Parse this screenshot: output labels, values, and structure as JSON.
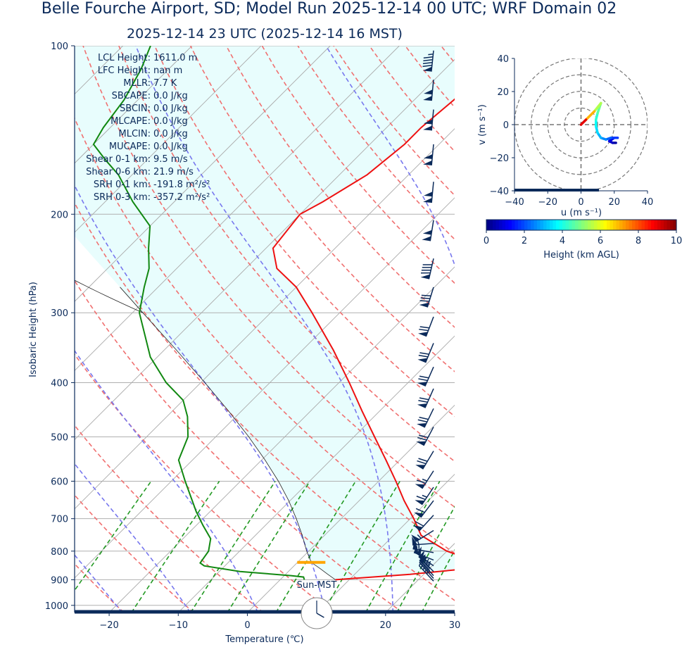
{
  "title": "Belle Fourche Airport, SD; Model Run 2025-12-14 00 UTC; WRF Domain 02",
  "subtitle": "2025-12-14 23 UTC  (2025-12-14 16 MST)",
  "colors": {
    "temperature": "#ee1111",
    "dewpoint": "#118811",
    "parcel": "#222222",
    "cape_fill": "#e8fdfd",
    "dry_adiabat": "#f07070",
    "moist_adiabat": "#7777ee",
    "mixing_ratio": "#229922",
    "isotherm": "#aaaaaa",
    "barb": "#0b2a5a",
    "lcl_marker": "#ffa500",
    "text": "#0b2a5a"
  },
  "chart_data": [
    {
      "type": "skew-t",
      "xlabel": "Temperature (℃)",
      "ylabel": "Isobaric Height (hPa)",
      "xlim": [
        -25,
        30
      ],
      "ylim": [
        1030,
        100
      ],
      "y_scale": "log",
      "x_ticks": [
        -20,
        -10,
        0,
        10,
        20,
        30
      ],
      "x_tick_labels": [
        "−20",
        "−10",
        "0",
        "10",
        "20",
        "30"
      ],
      "y_ticks": [
        1000,
        900,
        800,
        700,
        600,
        500,
        400,
        300,
        200,
        100
      ],
      "y_tick_labels": [
        "1000",
        "900",
        "800",
        "700",
        "600",
        "500",
        "400",
        "300",
        "200",
        "100"
      ],
      "stats": [
        {
          "label": "LCL Height:",
          "value": "1611.0 m"
        },
        {
          "label": "LFC Height:",
          "value": "nan m"
        },
        {
          "label": "MLLR:",
          "value": "7.7 K"
        },
        {
          "label": "SBCAPE:",
          "value": "0.0 J/kg"
        },
        {
          "label": "SBCIN:",
          "value": "0.0 J/kg"
        },
        {
          "label": "MLCAPE:",
          "value": "0.0 J/kg"
        },
        {
          "label": "MLCIN:",
          "value": "0.0 J/kg"
        },
        {
          "label": "MUCAPE:",
          "value": "0.0 J/kg"
        },
        {
          "label": "Shear 0-1 km:",
          "value": "9.5 m/s"
        },
        {
          "label": "Shear 0-6 km:",
          "value": "21.9 m/s"
        },
        {
          "label": "SRH 0-1 km:",
          "value": "-191.8 m²/s²"
        },
        {
          "label": "SRH 0-3 km:",
          "value": "-357.2 m²/s²"
        }
      ],
      "series": [
        {
          "key": "temperature",
          "points": [
            [
              900,
              8
            ],
            [
              880,
              18
            ],
            [
              860,
              25.5
            ],
            [
              840,
              26.5
            ],
            [
              800,
              20
            ],
            [
              750,
              14
            ],
            [
              700,
              10.5
            ],
            [
              650,
              6.5
            ],
            [
              600,
              2.5
            ],
            [
              550,
              -2
            ],
            [
              500,
              -7
            ],
            [
              450,
              -12.5
            ],
            [
              400,
              -18.5
            ],
            [
              350,
              -25.5
            ],
            [
              300,
              -34
            ],
            [
              270,
              -40
            ],
            [
              250,
              -45.5
            ],
            [
              230,
              -49
            ],
            [
              200,
              -50
            ],
            [
              190,
              -48.5
            ],
            [
              170,
              -46
            ],
            [
              150,
              -45
            ],
            [
              140,
              -45
            ],
            [
              120,
              -44
            ],
            [
              110,
              -44
            ],
            [
              100,
              -45
            ]
          ]
        },
        {
          "key": "dewpoint",
          "points": [
            [
              900,
              3.5
            ],
            [
              890,
              3
            ],
            [
              885,
              1
            ],
            [
              870,
              -7
            ],
            [
              850,
              -13
            ],
            [
              840,
              -14
            ],
            [
              800,
              -14.5
            ],
            [
              760,
              -16
            ],
            [
              720,
              -19
            ],
            [
              680,
              -22
            ],
            [
              600,
              -28
            ],
            [
              550,
              -32
            ],
            [
              500,
              -34
            ],
            [
              460,
              -37
            ],
            [
              430,
              -40
            ],
            [
              400,
              -45
            ],
            [
              360,
              -51
            ],
            [
              300,
              -59
            ],
            [
              270,
              -62
            ],
            [
              250,
              -64
            ],
            [
              230,
              -67
            ],
            [
              210,
              -70
            ],
            [
              190,
              -76
            ],
            [
              170,
              -82
            ],
            [
              160,
              -86
            ],
            [
              150,
              -90
            ],
            [
              140,
              -91
            ],
            [
              125,
              -92
            ],
            [
              110,
              -94
            ],
            [
              100,
              -96
            ]
          ]
        },
        {
          "key": "parcel",
          "points": [
            [
              900,
              8
            ],
            [
              880,
              6.1
            ],
            [
              860,
              4.2
            ],
            [
              838,
              2
            ],
            [
              800,
              -0.3
            ],
            [
              750,
              -3.2
            ],
            [
              700,
              -6.5
            ],
            [
              650,
              -10.2
            ],
            [
              600,
              -14.5
            ],
            [
              550,
              -19.5
            ],
            [
              500,
              -25.2
            ],
            [
              450,
              -31.8
            ],
            [
              400,
              -39.4
            ],
            [
              350,
              -48.2
            ],
            [
              300,
              -58.5
            ],
            [
              270,
              -65.5
            ]
          ]
        }
      ],
      "lcl_pressure": 838,
      "clock_label": "Sun-MST",
      "clock_time": "16:00",
      "wind_barbs": [
        {
          "p": 102,
          "u": 5,
          "v": 48
        },
        {
          "p": 115,
          "u": 5,
          "v": 52
        },
        {
          "p": 130,
          "u": 5,
          "v": 52
        },
        {
          "p": 150,
          "u": 5,
          "v": 52
        },
        {
          "p": 175,
          "u": 5,
          "v": 52
        },
        {
          "p": 205,
          "u": 8,
          "v": 50
        },
        {
          "p": 240,
          "u": 10,
          "v": 44
        },
        {
          "p": 270,
          "u": 12,
          "v": 39
        },
        {
          "p": 305,
          "u": 13,
          "v": 34
        },
        {
          "p": 340,
          "u": 14,
          "v": 34
        },
        {
          "p": 375,
          "u": 15,
          "v": 34
        },
        {
          "p": 410,
          "u": 15,
          "v": 34
        },
        {
          "p": 445,
          "u": 16,
          "v": 33
        },
        {
          "p": 480,
          "u": 17,
          "v": 32
        },
        {
          "p": 530,
          "u": 18,
          "v": 30
        },
        {
          "p": 575,
          "u": 18,
          "v": 28
        },
        {
          "p": 615,
          "u": 18,
          "v": 27
        },
        {
          "p": 650,
          "u": 19,
          "v": 25
        },
        {
          "p": 690,
          "u": 20,
          "v": 22
        },
        {
          "p": 735,
          "u": 24,
          "v": 15
        },
        {
          "p": 775,
          "u": 28,
          "v": 2
        },
        {
          "p": 805,
          "u": 27,
          "v": -5
        },
        {
          "p": 830,
          "u": 26,
          "v": -10
        },
        {
          "p": 850,
          "u": 23,
          "v": -17
        },
        {
          "p": 870,
          "u": 20,
          "v": -20
        },
        {
          "p": 885,
          "u": 18,
          "v": -20
        },
        {
          "p": 895,
          "u": 16,
          "v": -18
        },
        {
          "p": 905,
          "u": 15,
          "v": -16
        }
      ]
    },
    {
      "type": "line",
      "title": "",
      "xlabel": "u (m s⁻¹)",
      "ylabel": "v (m s⁻¹)",
      "xlim": [
        -40,
        40
      ],
      "ylim": [
        -40,
        40
      ],
      "x_ticks": [
        -40,
        -20,
        0,
        20,
        40
      ],
      "x_tick_labels": [
        "−40",
        "−20",
        "0",
        "20",
        "40"
      ],
      "y_ticks": [
        -40,
        -20,
        0,
        20,
        40
      ],
      "y_tick_labels": [
        "−40",
        "−20",
        "0",
        "20",
        "40"
      ],
      "range_rings": [
        10,
        20,
        30,
        40
      ],
      "color_key": "height_km",
      "points": [
        {
          "u": 21,
          "v": -11,
          "h": 0.2
        },
        {
          "u": 19,
          "v": -11,
          "h": 0.5
        },
        {
          "u": 17,
          "v": -10,
          "h": 0.8
        },
        {
          "u": 20,
          "v": -8,
          "h": 1.2
        },
        {
          "u": 22,
          "v": -8,
          "h": 1.6
        },
        {
          "u": 18,
          "v": -8,
          "h": 2.0
        },
        {
          "u": 15,
          "v": -9,
          "h": 2.4
        },
        {
          "u": 12,
          "v": -8,
          "h": 2.8
        },
        {
          "u": 10,
          "v": -5,
          "h": 3.2
        },
        {
          "u": 9,
          "v": -1,
          "h": 3.6
        },
        {
          "u": 9,
          "v": 3,
          "h": 4.0
        },
        {
          "u": 10,
          "v": 7,
          "h": 4.4
        },
        {
          "u": 11,
          "v": 10,
          "h": 4.8
        },
        {
          "u": 12,
          "v": 13,
          "h": 5.0
        },
        {
          "u": 8,
          "v": 8,
          "h": 6.0
        },
        {
          "u": 3,
          "v": 3,
          "h": 8.0
        },
        {
          "u": 0,
          "v": 0,
          "h": 10.0
        }
      ],
      "colorbar": {
        "label": "Height (km AGL)",
        "min": 0,
        "max": 10,
        "ticks": [
          "0",
          "2",
          "4",
          "6",
          "8",
          "10"
        ]
      }
    }
  ]
}
